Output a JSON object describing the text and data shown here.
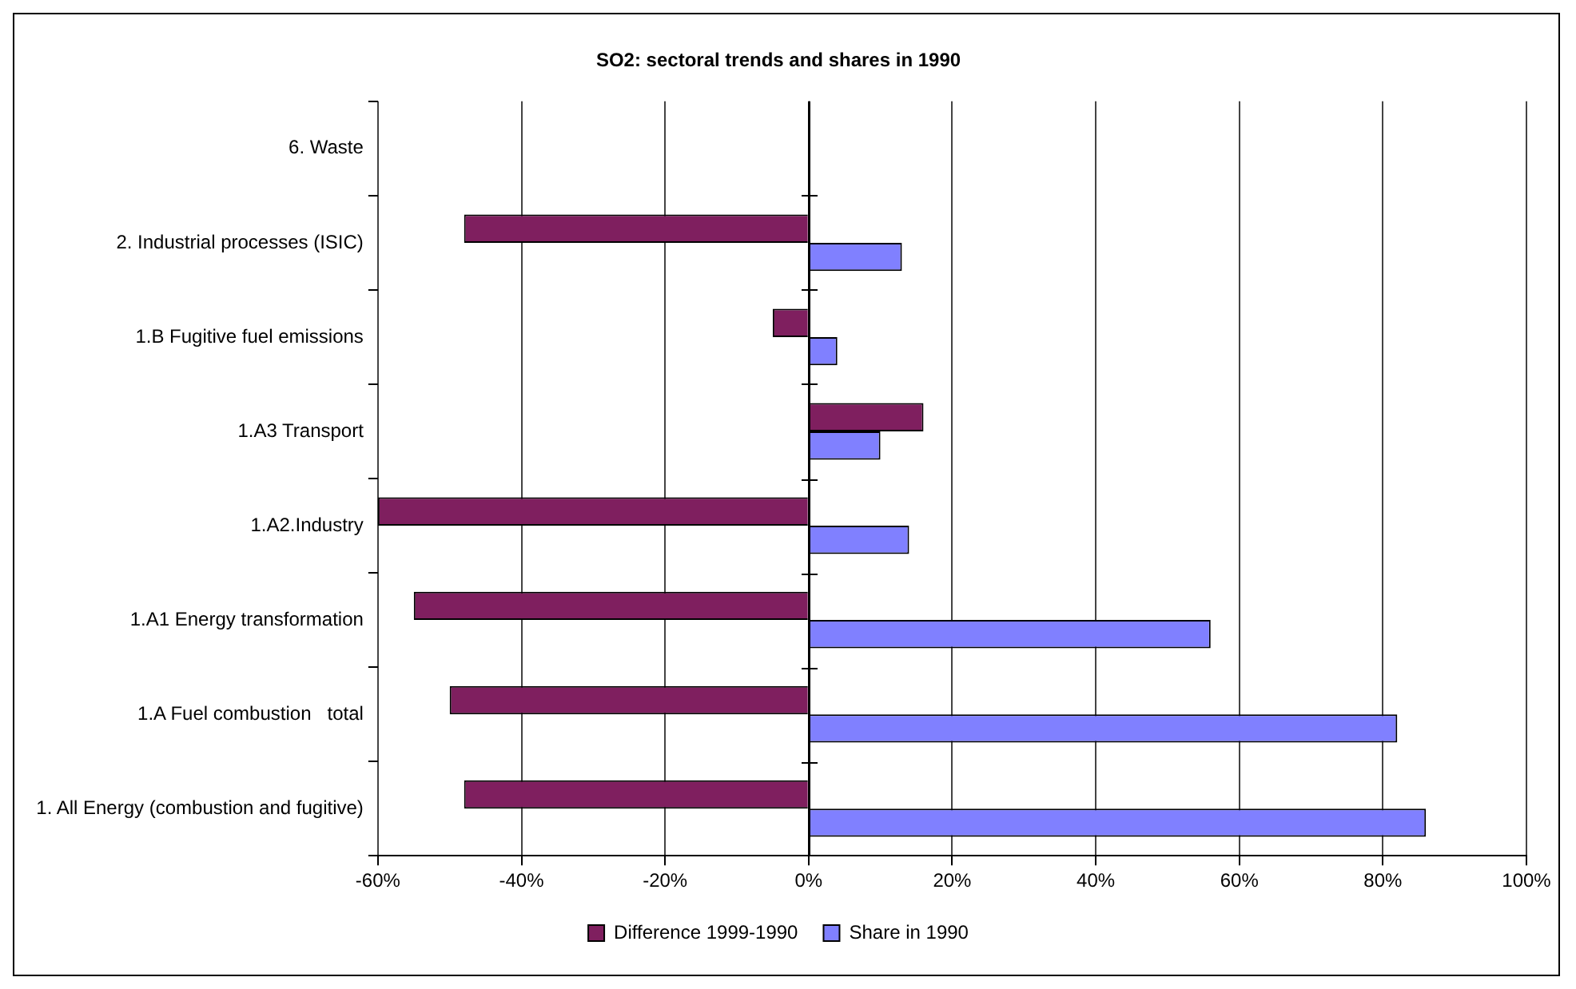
{
  "chart_data": {
    "type": "bar",
    "orientation": "horizontal",
    "title": "SO2: sectoral trends and shares in 1990",
    "categories": [
      "6. Waste",
      "2. Industrial processes (ISIC)",
      "1.B Fugitive fuel emissions",
      "1.A3 Transport",
      "1.A2.Industry",
      "1.A1 Energy transformation",
      "1.A Fuel combustion   total",
      "1. All Energy (combustion and fugitive)"
    ],
    "series": [
      {
        "name": "Difference 1999-1990",
        "color": "#7f1f5f",
        "values": [
          null,
          -48,
          -5,
          16,
          -60,
          -55,
          -50,
          -48
        ]
      },
      {
        "name": "Share in 1990",
        "color": "#8080ff",
        "values": [
          null,
          13,
          4,
          10,
          14,
          56,
          82,
          86
        ]
      }
    ],
    "xlim": [
      -60,
      100
    ],
    "xticks": [
      {
        "value": -60,
        "label": "-60%"
      },
      {
        "value": -40,
        "label": "-40%"
      },
      {
        "value": -20,
        "label": "-20%"
      },
      {
        "value": 0,
        "label": "0%"
      },
      {
        "value": 20,
        "label": "20%"
      },
      {
        "value": 40,
        "label": "40%"
      },
      {
        "value": 60,
        "label": "60%"
      },
      {
        "value": 80,
        "label": "80%"
      },
      {
        "value": 100,
        "label": "100%"
      }
    ],
    "grid": "x",
    "legend": "bottom"
  }
}
